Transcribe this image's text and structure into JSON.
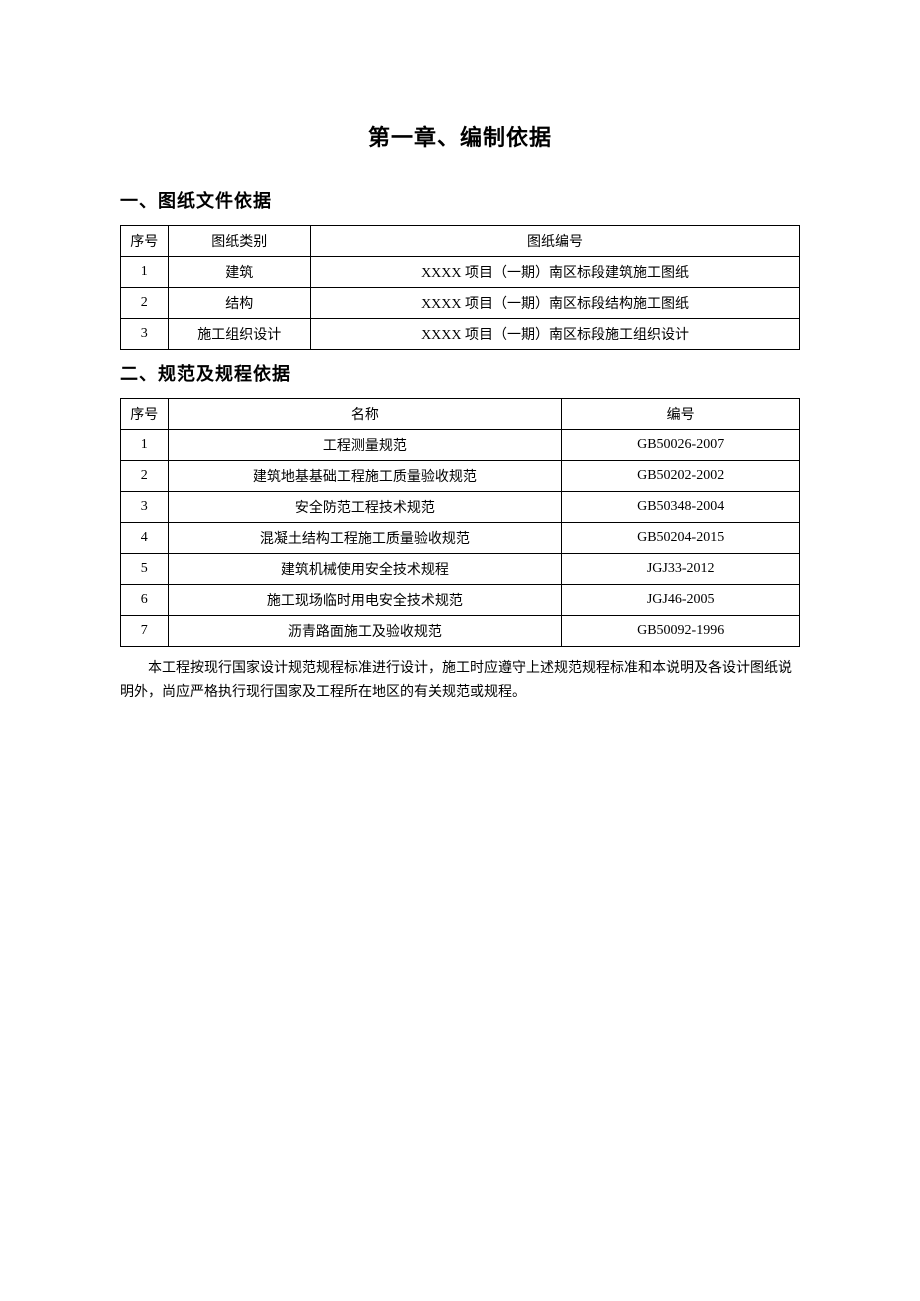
{
  "chapter_title": "第一章、编制依据",
  "section1": {
    "title": "一、图纸文件依据",
    "headers": [
      "序号",
      "图纸类别",
      "图纸编号"
    ],
    "rows": [
      [
        "1",
        "建筑",
        "XXXX 项目（一期）南区标段建筑施工图纸"
      ],
      [
        "2",
        "结构",
        "XXXX 项目（一期）南区标段结构施工图纸"
      ],
      [
        "3",
        "施工组织设计",
        "XXXX 项目（一期）南区标段施工组织设计"
      ]
    ]
  },
  "section2": {
    "title": "二、规范及规程依据",
    "headers": [
      "序号",
      "名称",
      "编号"
    ],
    "rows": [
      [
        "1",
        "工程测量规范",
        "GB50026-2007"
      ],
      [
        "2",
        "建筑地基基础工程施工质量验收规范",
        "GB50202-2002"
      ],
      [
        "3",
        "安全防范工程技术规范",
        "GB50348-2004"
      ],
      [
        "4",
        "混凝土结构工程施工质量验收规范",
        "GB50204-2015"
      ],
      [
        "5",
        "建筑机械使用安全技术规程",
        "JGJ33-2012"
      ],
      [
        "6",
        "施工现场临时用电安全技术规范",
        "JGJ46-2005"
      ],
      [
        "7",
        "沥青路面施工及验收规范",
        "GB50092-1996"
      ]
    ]
  },
  "footnote": "本工程按现行国家设计规范规程标准进行设计，施工时应遵守上述规范规程标准和本说明及各设计图纸说明外，尚应严格执行现行国家及工程所在地区的有关规范或规程。"
}
